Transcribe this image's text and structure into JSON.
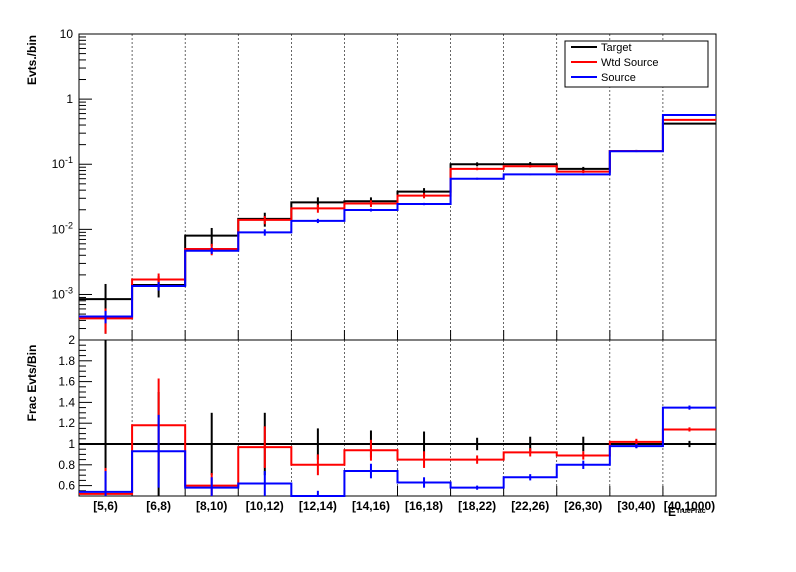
{
  "chart_data": [
    {
      "type": "step",
      "panel": "top",
      "ylabel": "Evts./bin",
      "yscale": "log",
      "ylim": [
        0.0002,
        10
      ],
      "yticks": [
        {
          "v": 0.001,
          "base": "10",
          "exp": "-3"
        },
        {
          "v": 0.01,
          "base": "10",
          "exp": "-2"
        },
        {
          "v": 0.1,
          "base": "10",
          "exp": "-1"
        },
        {
          "v": 1,
          "base": "1",
          "exp": ""
        },
        {
          "v": 10,
          "base": "10",
          "exp": ""
        }
      ],
      "categories": [
        "[5,6)",
        "[6,8)",
        "[8,10)",
        "[10,12)",
        "[12,14)",
        "[14,16)",
        "[16,18)",
        "[18,22)",
        "[22,26)",
        "[26,30)",
        "[30,40)",
        "[40,1000)"
      ],
      "grid": "vertical-dashed",
      "legend_position": "top-right",
      "series": [
        {
          "name": "Target",
          "color": "#000000",
          "values": [
            0.00085,
            0.0014,
            0.008,
            0.0145,
            0.026,
            0.027,
            0.038,
            0.1,
            0.1,
            0.085,
            0.16,
            0.42
          ],
          "errors": [
            0.0006,
            0.0005,
            0.0025,
            0.0035,
            0.005,
            0.004,
            0.005,
            0.007,
            0.008,
            0.006,
            0.006,
            0.01
          ]
        },
        {
          "name": "Wtd Source",
          "color": "#ff0000",
          "values": [
            0.00043,
            0.0017,
            0.005,
            0.014,
            0.021,
            0.025,
            0.033,
            0.085,
            0.093,
            0.077,
            0.16,
            0.48
          ],
          "errors": [
            0.00018,
            0.0004,
            0.001,
            0.002,
            0.003,
            0.003,
            0.003,
            0.004,
            0.004,
            0.004,
            0.005,
            0.01
          ]
        },
        {
          "name": "Source",
          "color": "#0000ff",
          "values": [
            0.00046,
            0.00135,
            0.0047,
            0.009,
            0.0135,
            0.0198,
            0.0245,
            0.06,
            0.07,
            0.07,
            0.158,
            0.57
          ],
          "errors": [
            0.0001,
            0.0002,
            0.0005,
            0.001,
            0.001,
            0.001,
            0.001,
            0.002,
            0.002,
            0.002,
            0.004,
            0.01
          ]
        }
      ]
    },
    {
      "type": "step",
      "panel": "bottom",
      "ylabel": "Frac Evts/Bin",
      "xlabel": "E",
      "xlabel_subscript": "TrueFrac",
      "ylim": [
        0.5,
        2
      ],
      "yticks": [
        "0.6",
        "0.8",
        "1",
        "1.2",
        "1.4",
        "1.6",
        "1.8",
        "2"
      ],
      "categories": [
        "[5,6)",
        "[6,8)",
        "[8,10)",
        "[10,12)",
        "[12,14)",
        "[14,16)",
        "[16,18)",
        "[18,22)",
        "[22,26)",
        "[26,30)",
        "[30,40)",
        "[40,1000)"
      ],
      "grid": "vertical-dashed",
      "series": [
        {
          "name": "Target",
          "color": "#000000",
          "values": [
            1,
            1,
            1,
            1,
            1,
            1,
            1,
            1,
            1,
            1,
            1,
            1
          ],
          "errors": [
            1.0,
            0.5,
            0.3,
            0.3,
            0.15,
            0.13,
            0.12,
            0.06,
            0.07,
            0.07,
            0.04,
            0.03
          ]
        },
        {
          "name": "Wtd Source",
          "color": "#ff0000",
          "values": [
            0.52,
            1.18,
            0.6,
            0.97,
            0.8,
            0.94,
            0.85,
            0.85,
            0.92,
            0.89,
            1.02,
            1.14
          ],
          "errors": [
            0.25,
            0.45,
            0.12,
            0.2,
            0.1,
            0.1,
            0.08,
            0.04,
            0.04,
            0.04,
            0.03,
            0.02
          ]
        },
        {
          "name": "Source",
          "color": "#0000ff",
          "values": [
            0.54,
            0.93,
            0.58,
            0.62,
            0.5,
            0.74,
            0.63,
            0.58,
            0.68,
            0.8,
            0.98,
            1.35
          ],
          "errors": [
            0.2,
            0.35,
            0.1,
            0.12,
            0.05,
            0.07,
            0.05,
            0.02,
            0.03,
            0.04,
            0.02,
            0.02
          ]
        }
      ]
    }
  ]
}
